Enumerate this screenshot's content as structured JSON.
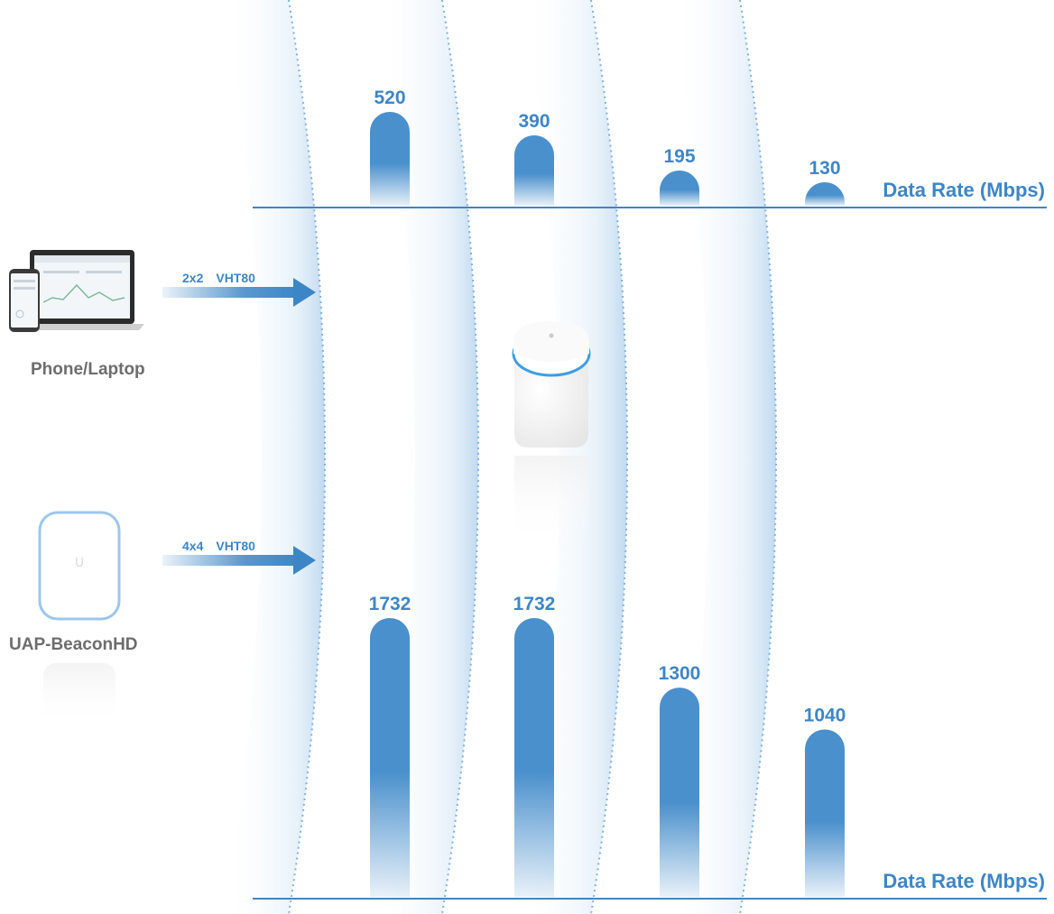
{
  "colors": {
    "accent": "#3d86c6",
    "bar": "#4a90cc",
    "device_label": "#6d6d6d"
  },
  "devices": {
    "phone_laptop": {
      "label": "Phone/Laptop",
      "stream": "2x2",
      "mode": "VHT80"
    },
    "beacon": {
      "label": "UAP-BeaconHD",
      "stream": "4x4",
      "mode": "VHT80"
    }
  },
  "chart_data": [
    {
      "type": "bar",
      "xlabel": "Data Rate (Mbps)",
      "values": [
        520,
        390,
        195,
        130
      ]
    },
    {
      "type": "bar",
      "xlabel": "Data Rate (Mbps)",
      "values": [
        1732,
        1732,
        1300,
        1040
      ]
    }
  ]
}
